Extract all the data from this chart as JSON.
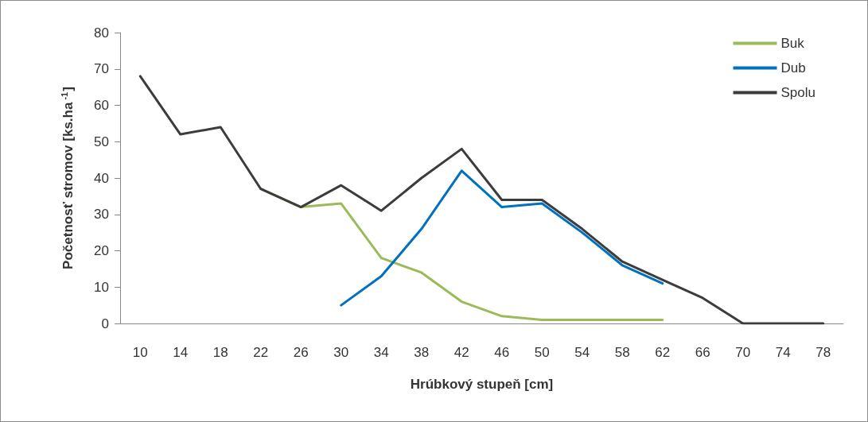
{
  "chart_data": {
    "type": "line",
    "xlabel": "Hrúbkový stupeň [cm]",
    "ylabel": "Početnosť stromov [ks.ha$^{-1}$]",
    "categories": [
      "10",
      "14",
      "18",
      "22",
      "26",
      "30",
      "34",
      "38",
      "42",
      "46",
      "50",
      "54",
      "58",
      "62",
      "66",
      "70",
      "74",
      "78"
    ],
    "series": [
      {
        "name": "Buk",
        "color": "#9bbb59",
        "values": [
          null,
          null,
          null,
          37,
          32,
          33,
          18,
          14,
          6,
          2,
          1,
          1,
          1,
          1,
          null,
          null,
          null,
          null
        ]
      },
      {
        "name": "Dub",
        "color": "#0070c0",
        "values": [
          null,
          null,
          null,
          null,
          null,
          5,
          13,
          26,
          42,
          32,
          33,
          25,
          16,
          11,
          null,
          null,
          null,
          null
        ]
      },
      {
        "name": "Spolu",
        "color": "#3c3c3c",
        "values": [
          68,
          52,
          54,
          37,
          32,
          38,
          31,
          40,
          48,
          34,
          34,
          26,
          17,
          12,
          7,
          0,
          0,
          0
        ]
      }
    ],
    "ylim": [
      0,
      80
    ],
    "yticks": [
      0,
      10,
      20,
      30,
      40,
      50,
      60,
      70,
      80
    ],
    "grid": false,
    "legend": "top right",
    "marker": "none",
    "line_style": "solid"
  }
}
